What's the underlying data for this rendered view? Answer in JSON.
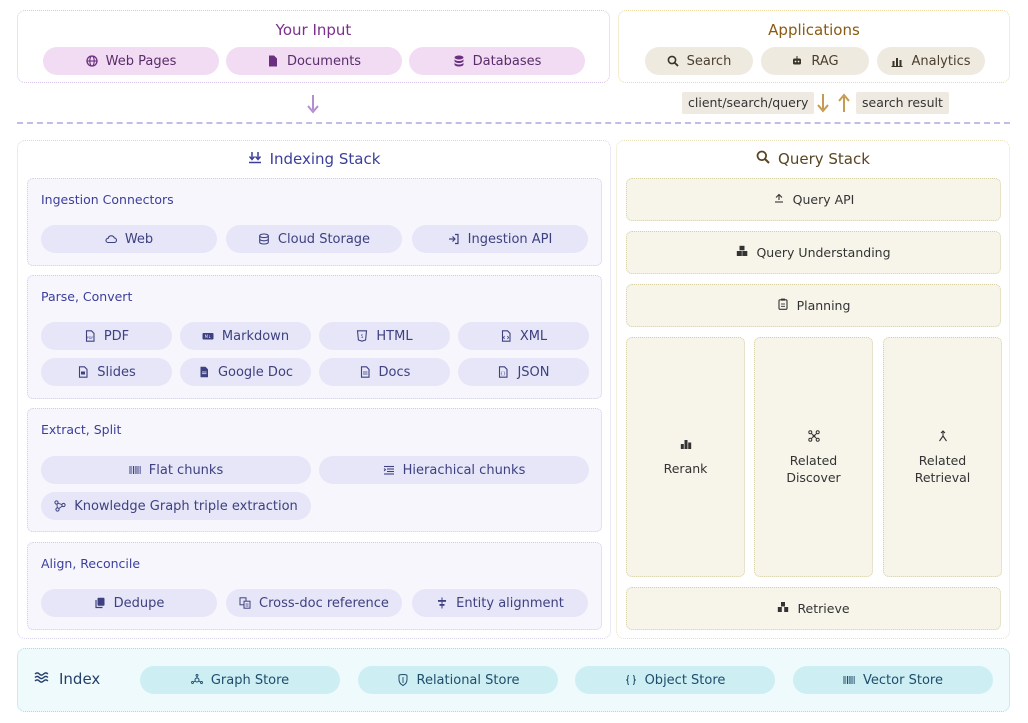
{
  "input": {
    "title": "Your Input",
    "items": [
      {
        "label": "Web Pages",
        "icon": "globe-icon"
      },
      {
        "label": "Documents",
        "icon": "document-icon"
      },
      {
        "label": "Databases",
        "icon": "database-icon"
      }
    ]
  },
  "applications": {
    "title": "Applications",
    "items": [
      {
        "label": "Search",
        "icon": "search-icon"
      },
      {
        "label": "RAG",
        "icon": "robot-icon"
      },
      {
        "label": "Analytics",
        "icon": "bar-chart-icon"
      }
    ]
  },
  "flow": {
    "request_label": "client/search/query",
    "result_label": "search result"
  },
  "indexing": {
    "title": "Indexing Stack",
    "ingestion": {
      "title": "Ingestion Connectors",
      "items": [
        {
          "label": "Web",
          "icon": "cloud-icon"
        },
        {
          "label": "Cloud Storage",
          "icon": "database-icon"
        },
        {
          "label": "Ingestion API",
          "icon": "login-icon"
        }
      ]
    },
    "parse": {
      "title": "Parse, Convert",
      "items": [
        {
          "label": "PDF",
          "icon": "pdf-icon"
        },
        {
          "label": "Markdown",
          "icon": "markdown-icon"
        },
        {
          "label": "HTML",
          "icon": "html-icon"
        },
        {
          "label": "XML",
          "icon": "xml-icon"
        },
        {
          "label": "Slides",
          "icon": "slides-icon"
        },
        {
          "label": "Google Doc",
          "icon": "google-doc-icon"
        },
        {
          "label": "Docs",
          "icon": "docs-icon"
        },
        {
          "label": "JSON",
          "icon": "json-icon"
        }
      ]
    },
    "extract": {
      "title": "Extract, Split",
      "items": [
        {
          "label": "Flat chunks",
          "icon": "barcode-icon"
        },
        {
          "label": "Hierachical chunks",
          "icon": "indent-list-icon"
        },
        {
          "label": "Knowledge Graph triple extraction",
          "icon": "graph-icon"
        }
      ]
    },
    "align": {
      "title": "Align, Reconcile",
      "items": [
        {
          "label": "Dedupe",
          "icon": "copy-icon"
        },
        {
          "label": "Cross-doc reference",
          "icon": "reference-icon"
        },
        {
          "label": "Entity alignment",
          "icon": "align-icon"
        }
      ]
    }
  },
  "query": {
    "title": "Query Stack",
    "api": {
      "label": "Query API",
      "icon": "api-icon"
    },
    "understanding": {
      "label": "Query Understanding",
      "icon": "cubes-icon"
    },
    "planning": {
      "label": "Planning",
      "icon": "clipboard-icon"
    },
    "rerank": {
      "label": "Rerank",
      "icon": "rank-icon"
    },
    "related_discover": {
      "line1": "Related",
      "line2": "Discover",
      "icon": "network-icon"
    },
    "related_retrieval": {
      "line1": "Related",
      "line2": "Retrieval",
      "icon": "merge-icon"
    },
    "retrieve": {
      "label": "Retrieve",
      "icon": "retrieve-icon"
    }
  },
  "index": {
    "title": "Index",
    "stores": [
      {
        "label": "Graph Store",
        "icon": "graph-store-icon"
      },
      {
        "label": "Relational Store",
        "icon": "relational-store-icon"
      },
      {
        "label": "Object Store",
        "icon": "braces-icon"
      },
      {
        "label": "Vector Store",
        "icon": "vector-icon"
      }
    ]
  },
  "colors": {
    "input_accent": "#7a2f8e",
    "apps_accent": "#8a5a12",
    "indexing_accent": "#3b3f9a",
    "index_accent": "#24406a",
    "arrow_purple": "#b48fd0",
    "arrow_gold": "#c79a52"
  }
}
